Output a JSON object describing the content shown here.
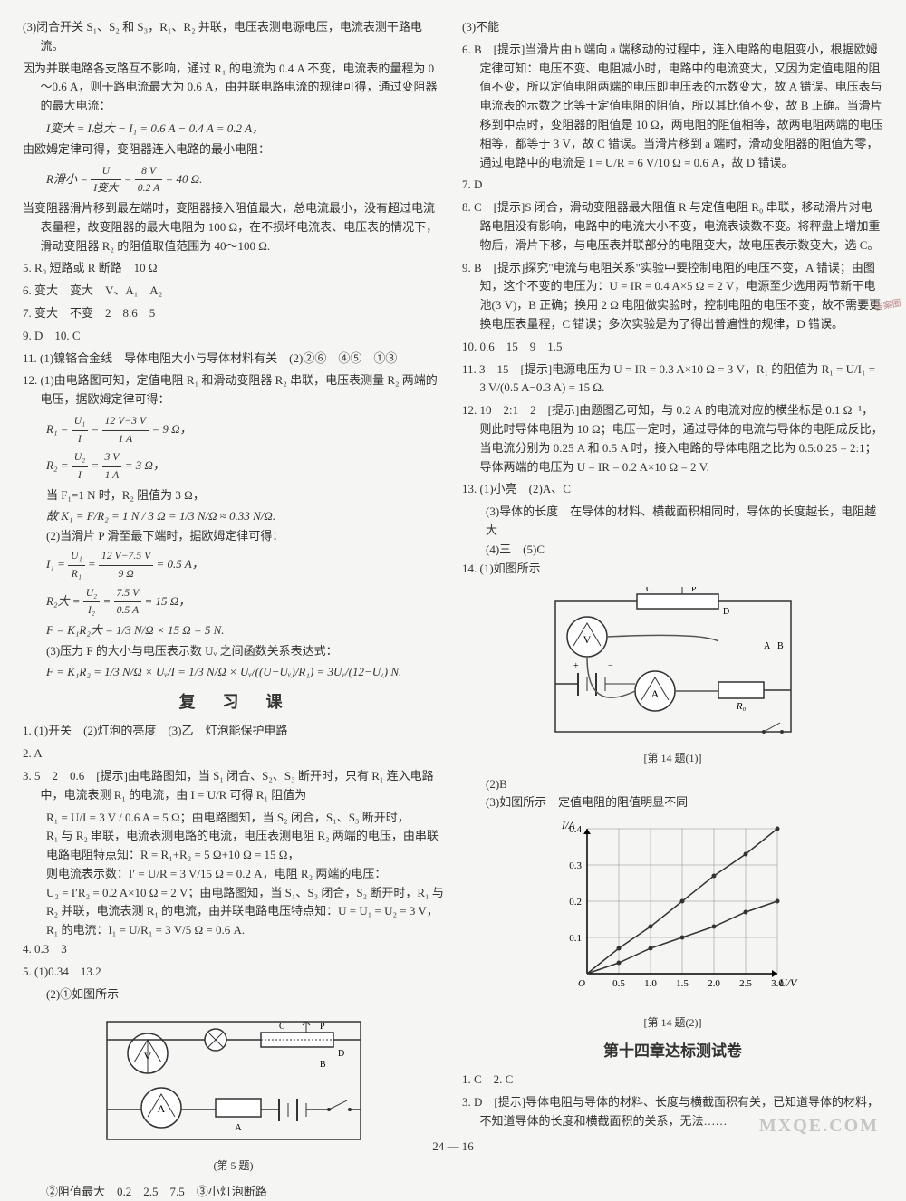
{
  "left": {
    "p3": "(3)闭合开关 S₁、S₂ 和 S₃，R₁、R₂ 并联，电压表测电源电压，电流表测干路电流。",
    "p3a": "因为并联电路各支路互不影响，通过 R₁ 的电流为 0.4 A 不变，电流表的量程为 0～0.6 A，则干路电流最大为 0.6 A，由并联电路电流的规律可得，通过变阻器的最大电流：",
    "f1": "I变大 = I总大 − I₁ = 0.6 A − 0.4 A = 0.2 A，",
    "p3b": "由欧姆定律可得，变阻器连入电路的最小电阻：",
    "f2a": "R滑小 =",
    "f2n": "U",
    "f2d": "I变大",
    "f2m": "=",
    "f2n2": "8 V",
    "f2d2": "0.2 A",
    "f2e": "= 40 Ω.",
    "p3c": "当变阻器滑片移到最左端时，变阻器接入阻值最大，总电流最小，没有超过电流表量程，故变阻器的最大电阻为 100 Ω，在不损坏电流表、电压表的情况下，滑动变阻器 R₂ 的阻值取值范围为 40～100 Ω.",
    "q5": "5. R₀ 短路或 R 断路　10 Ω",
    "q6": "6. 变大　变大　V、A₁　A₂",
    "q7": "7. 变大　不变　2　8.6　5",
    "q9": "9. D　10. C",
    "q11": "11. (1)镍铬合金线　导体电阻大小与导体材料有关　(2)②⑥　④⑤　①③",
    "q12": "12. (1)由电路图可知，定值电阻 R₁ 和滑动变阻器 R₂ 串联，电压表测量 R₂ 两端的电压，据欧姆定律可得：",
    "f3a": "R₁ =",
    "f3n": "U₁",
    "f3d": "I",
    "f3m": "=",
    "f3n2": "12 V−3 V",
    "f3d2": "1 A",
    "f3e": "= 9 Ω，",
    "f4a": "R₂ =",
    "f4n": "U₂",
    "f4d": "I",
    "f4m": "=",
    "f4n2": "3 V",
    "f4d2": "1 A",
    "f4e": "= 3 Ω，",
    "p12a": "当 F₁=1 N 时，R₂ 阻值为 3 Ω，",
    "f5": "故 K₁ = F/R₂ = 1 N / 3 Ω = 1/3 N/Ω ≈ 0.33 N/Ω.",
    "p12b": "(2)当滑片 P 滑至最下端时，据欧姆定律可得：",
    "f6a": "I₁ =",
    "f6n": "U₁",
    "f6d": "R₁",
    "f6m": "=",
    "f6n2": "12 V−7.5 V",
    "f6d2": "9 Ω",
    "f6e": "= 0.5 A，",
    "f7a": "R₂大 =",
    "f7n": "U₂",
    "f7d": "I₂",
    "f7m": "=",
    "f7n2": "7.5 V",
    "f7d2": "0.5 A",
    "f7e": "= 15 Ω，",
    "f8": "F = K₁R₂大 = 1/3 N/Ω × 15 Ω = 5 N.",
    "p12c": "(3)压力 F 的大小与电压表示数 Uᵥ 之间函数关系表达式：",
    "f9": "F = K₁R₂ = 1/3 N/Ω × Uᵥ/I = 1/3 N/Ω × Uᵥ/((U−Uᵥ)/R₁) = 3Uᵥ/(12−Uᵥ) N.",
    "review_title": "复　习　课",
    "r1": "1. (1)开关　(2)灯泡的亮度　(3)乙　灯泡能保护电路",
    "r2": "2. A",
    "r3": "3. 5　2　0.6　[提示]由电路图知，当 S₁ 闭合、S₂、S₃ 断开时，只有 R₁ 连入电路中，电流表测 R₁ 的电流，由 I = U/R 可得 R₁ 阻值为",
    "r3f": "R₁ = U/I = 3 V / 0.6 A = 5 Ω；由电路图知，当 S₂ 闭合，S₁、S₃ 断开时，",
    "r3b": "R₁ 与 R₂ 串联，电流表测电路的电流，电压表测电阻 R₂ 两端的电压，由串联电路电阻特点知：R = R₁+R₂ = 5 Ω+10 Ω = 15 Ω，",
    "r3c": "则电流表示数：I′ = U/R = 3 V/15 Ω = 0.2 A，电阻 R₂ 两端的电压：",
    "r3d": "U₂ = I′R₂ = 0.2 A×10 Ω = 2 V；由电路图知，当 S₁、S₃ 闭合，S₂ 断开时，R₁ 与 R₂ 并联，电流表测 R₁ 的电流，由并联电路电压特点知：U = U₁ = U₂ = 3 V，R₁ 的电流：I₁ = U/R₁ = 3 V/5 Ω = 0.6 A.",
    "r4": "4. 0.3　3",
    "r5": "5. (1)0.34　13.2",
    "r5b": "(2)①如图所示",
    "fig5_caption": "(第 5 题)",
    "r5c": "②阻值最大　0.2　2.5　7.5　③小灯泡断路"
  },
  "right": {
    "p3": "(3)不能",
    "q6": "6. B　[提示]当滑片由 b 端向 a 端移动的过程中，连入电路的电阻变小，根据欧姆定律可知：电压不变、电阻减小时，电路中的电流变大，又因为定值电阻的阻值不变，所以定值电阻两端的电压即电压表的示数变大，故 A 错误。电压表与电流表的示数之比等于定值电阻的阻值，所以其比值不变，故 B 正确。当滑片移到中点时，变阻器的阻值是 10 Ω，两电阻的阻值相等，故两电阻两端的电压相等，都等于 3 V，故 C 错误。当滑片移到 a 端时，滑动变阻器的阻值为零，通过电路中的电流是 I = U/R = 6 V/10 Ω = 0.6 A，故 D 错误。",
    "q7": "7. D",
    "q8": "8. C　[提示]S 闭合，滑动变阻器最大阻值 R 与定值电阻 R₀ 串联，移动滑片对电路电阻没有影响，电路中的电流大小不变，电流表读数不变。将秤盘上增加重物后，滑片下移，与电压表并联部分的电阻变大，故电压表示数变大，选 C。",
    "q9": "9. B　[提示]探究\"电流与电阻关系\"实验中要控制电阻的电压不变，A 错误；由图知，这个不变的电压为：U = IR = 0.4 A×5 Ω = 2 V，电源至少选用两节新干电池(3 V)，B 正确；换用 2 Ω 电阻做实验时，控制电阻的电压不变，故不需要更换电压表量程，C 错误；多次实验是为了得出普遍性的规律，D 错误。",
    "q10": "10. 0.6　15　9　1.5",
    "q11": "11. 3　15　[提示]电源电压为 U = IR = 0.3 A×10 Ω = 3 V，R₁ 的阻值为 R₁ = U/I₁ = 3 V/(0.5 A−0.3 A) = 15 Ω.",
    "q12": "12. 10　2:1　2　[提示]由题图乙可知，与 0.2 A 的电流对应的横坐标是 0.1 Ω⁻¹，则此时导体电阻为 10 Ω；电压一定时，通过导体的电流与导体的电阻成反比，当电流分别为 0.25 A 和 0.5 A 时，接入电路的导体电阻之比为 0.5:0.25 = 2:1；导体两端的电压为 U = IR = 0.2 A×10 Ω = 2 V.",
    "q13": "13. (1)小亮　(2)A、C",
    "q13b": "(3)导体的长度　在导体的材料、横截面积相同时，导体的长度越长，电阻越大",
    "q13c": "(4)三　(5)C",
    "q14": "14. (1)如图所示",
    "fig14_caption": "[第 14 题(1)]",
    "q14b": "(2)B",
    "q14c": "(3)如图所示　定值电阻的阻值明显不同",
    "chart": {
      "type": "scatter-line",
      "xlabel": "U/V",
      "ylabel": "I/A",
      "xlim": [
        0,
        3.0
      ],
      "ylim": [
        0,
        0.4
      ],
      "xticks": [
        0.5,
        1.0,
        1.5,
        2.0,
        2.5,
        3.0
      ],
      "yticks": [
        0.1,
        0.2,
        0.3,
        0.4
      ],
      "series1": {
        "x": [
          0.5,
          1.0,
          1.5,
          2.0,
          2.5,
          3.0
        ],
        "y": [
          0.07,
          0.13,
          0.2,
          0.27,
          0.33,
          0.4
        ],
        "color": "#333"
      },
      "series2": {
        "x": [
          0.5,
          1.0,
          1.5,
          2.0,
          2.5,
          3.0
        ],
        "y": [
          0.03,
          0.07,
          0.1,
          0.13,
          0.17,
          0.2
        ],
        "color": "#333"
      },
      "bg": "#ffffff",
      "grid": "#888"
    },
    "fig14b_caption": "[第 14 题(2)]",
    "chapter": "第十四章达标测试卷",
    "c1": "1. C　2. C",
    "c3": "3. D　[提示]导体电阻与导体的材料、长度与横截面积有关，已知道导体的材料，不知道导体的长度和横截面积的关系，无法……"
  },
  "page_num": "24 — 16",
  "watermark": "MXQE.COM",
  "side_note": "答案圈"
}
